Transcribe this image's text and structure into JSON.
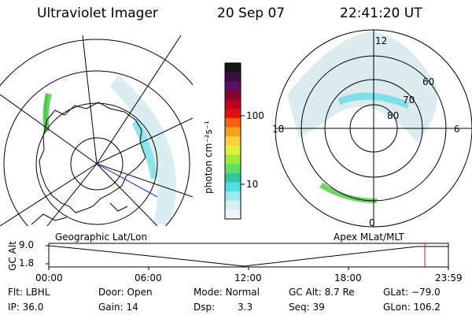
{
  "header": {
    "title": "Ultraviolet Imager",
    "date": "20 Sep 07",
    "time": "22:41:20 UT"
  },
  "geo_map": {
    "label": "Geographic Lat/Lon"
  },
  "colorbar": {
    "unit_label": "photon cm⁻²s⁻¹",
    "ticks": [
      "100",
      "10"
    ],
    "colors": [
      "#151515",
      "#3a1040",
      "#5a1060",
      "#8a0030",
      "#c00020",
      "#e01010",
      "#f36010",
      "#f5a020",
      "#f8d040",
      "#e0f040",
      "#a0e840",
      "#60e060",
      "#30c8a0",
      "#50e0e0",
      "#a0e8f0",
      "#d8f0f4",
      "#eef6f8"
    ]
  },
  "polar_plot": {
    "label": "Apex MLat/MLT",
    "lat_labels": [
      "60",
      "70",
      "80"
    ],
    "mlt_labels": {
      "top": "12",
      "left": "18",
      "right": "6",
      "bottom": "0"
    }
  },
  "timeline": {
    "axis_label": "GC Alt",
    "y_ticks": [
      "9.0",
      "1.8"
    ],
    "x_ticks": [
      "00:00",
      "06:00",
      "12:00",
      "18:00",
      "23:59"
    ],
    "marker_color": "#d02020"
  },
  "info": {
    "flt": "Flt: LBHL",
    "ip": "IP: 36.0",
    "door": "Door: Open",
    "gain": "Gain: 14",
    "mode": "Mode: Normal",
    "dsp_label": "Dsp:",
    "dsp_value": "3.3",
    "gcalt": "GC Alt: 8.7 Re",
    "seq": "Seq: 39",
    "glat": "GLat: −79.0",
    "glon": "GLon: 106.2"
  }
}
